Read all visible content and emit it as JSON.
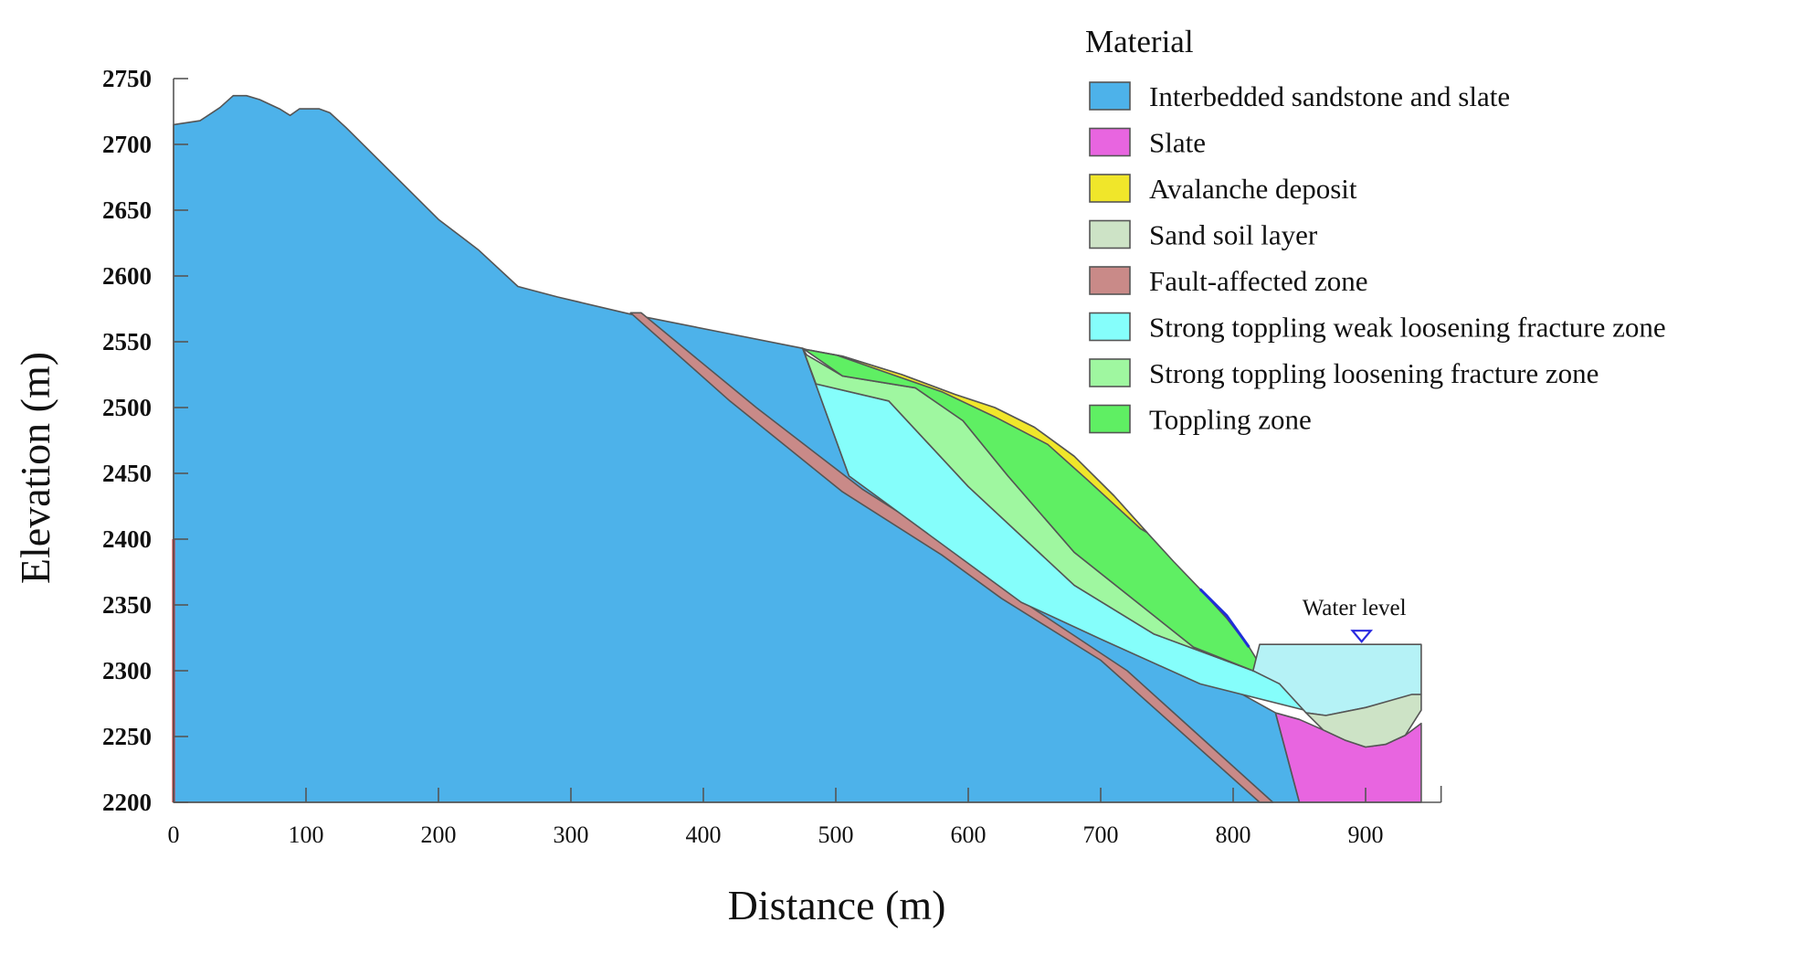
{
  "chart_data": {
    "type": "cross-section",
    "xlabel": "Distance (m)",
    "ylabel": "Elevation (m)",
    "xlim": [
      0,
      960
    ],
    "ylim": [
      2200,
      2750
    ],
    "x_ticks": [
      "0",
      "100",
      "200",
      "300",
      "400",
      "500",
      "600",
      "700",
      "800",
      "900"
    ],
    "y_ticks": [
      "2200",
      "2250",
      "2300",
      "2350",
      "2400",
      "2450",
      "2500",
      "2550",
      "2600",
      "2650",
      "2700",
      "2750"
    ],
    "legend_title": "Material",
    "legend_position": "top-right",
    "materials": [
      {
        "id": "sandstone",
        "label": "Interbedded sandstone and slate",
        "color": "#4db2ea"
      },
      {
        "id": "slate",
        "label": "Slate",
        "color": "#e865e0"
      },
      {
        "id": "avalanche",
        "label": "Avalanche deposit",
        "color": "#f0e62a"
      },
      {
        "id": "sand",
        "label": "Sand soil layer",
        "color": "#cde3c6"
      },
      {
        "id": "fault",
        "label": "Fault-affected zone",
        "color": "#c98a88"
      },
      {
        "id": "weak",
        "label": "Strong toppling weak loosening fracture zone",
        "color": "#85fefb"
      },
      {
        "id": "loose",
        "label": "Strong toppling loosening fracture zone",
        "color": "#9ff7a0"
      },
      {
        "id": "toppling",
        "label": "Toppling zone",
        "color": "#5fef63"
      }
    ],
    "water_level_label": "Water level",
    "water_level_elevation": 2320,
    "water_color": "#b5f2f6",
    "regions": {
      "sandstone": [
        [
          0,
          2200
        ],
        [
          0,
          2715
        ],
        [
          20,
          2718
        ],
        [
          35,
          2728
        ],
        [
          45,
          2737
        ],
        [
          55,
          2737
        ],
        [
          65,
          2734
        ],
        [
          80,
          2727
        ],
        [
          88,
          2722
        ],
        [
          95,
          2727
        ],
        [
          110,
          2727
        ],
        [
          118,
          2724
        ],
        [
          130,
          2713
        ],
        [
          150,
          2693
        ],
        [
          175,
          2668
        ],
        [
          200,
          2643
        ],
        [
          230,
          2620
        ],
        [
          260,
          2592
        ],
        [
          290,
          2584
        ],
        [
          345,
          2571
        ],
        [
          420,
          2556
        ],
        [
          475,
          2545
        ],
        [
          510,
          2448
        ],
        [
          832,
          2268
        ],
        [
          850,
          2200
        ]
      ],
      "slate": [
        [
          832,
          2268
        ],
        [
          850,
          2263
        ],
        [
          868,
          2255
        ],
        [
          885,
          2247
        ],
        [
          900,
          2242
        ],
        [
          915,
          2244
        ],
        [
          930,
          2251
        ],
        [
          942,
          2260
        ],
        [
          942,
          2200
        ],
        [
          850,
          2200
        ]
      ],
      "fault": [
        [
          345,
          2572
        ],
        [
          353,
          2572
        ],
        [
          440,
          2500
        ],
        [
          520,
          2438
        ],
        [
          600,
          2387
        ],
        [
          645,
          2350
        ],
        [
          720,
          2300
        ],
        [
          830,
          2200
        ],
        [
          820,
          2200
        ],
        [
          700,
          2308
        ],
        [
          625,
          2355
        ],
        [
          580,
          2388
        ],
        [
          505,
          2436
        ],
        [
          420,
          2505
        ]
      ],
      "weak": [
        [
          485,
          2518
        ],
        [
          475,
          2545
        ],
        [
          510,
          2448
        ],
        [
          640,
          2352
        ],
        [
          700,
          2324
        ],
        [
          775,
          2290
        ],
        [
          870,
          2266
        ],
        [
          900,
          2272
        ],
        [
          815,
          2300
        ],
        [
          740,
          2328
        ],
        [
          680,
          2365
        ],
        [
          600,
          2440
        ],
        [
          540,
          2505
        ]
      ],
      "loose": [
        [
          475,
          2545
        ],
        [
          485,
          2518
        ],
        [
          540,
          2505
        ],
        [
          600,
          2440
        ],
        [
          680,
          2365
        ],
        [
          740,
          2328
        ],
        [
          815,
          2300
        ],
        [
          900,
          2272
        ],
        [
          770,
          2318
        ],
        [
          680,
          2390
        ],
        [
          630,
          2448
        ],
        [
          596,
          2490
        ],
        [
          560,
          2515
        ],
        [
          505,
          2524
        ],
        [
          478,
          2540
        ]
      ],
      "toppling": [
        [
          475,
          2545
        ],
        [
          505,
          2524
        ],
        [
          560,
          2515
        ],
        [
          596,
          2490
        ],
        [
          630,
          2448
        ],
        [
          680,
          2390
        ],
        [
          770,
          2318
        ],
        [
          815,
          2300
        ],
        [
          820,
          2305
        ],
        [
          812,
          2318
        ],
        [
          795,
          2340
        ],
        [
          775,
          2362
        ],
        [
          755,
          2383
        ],
        [
          735,
          2405
        ],
        [
          710,
          2433
        ],
        [
          680,
          2463
        ],
        [
          650,
          2485
        ],
        [
          620,
          2500
        ],
        [
          590,
          2510
        ],
        [
          550,
          2525
        ],
        [
          505,
          2539
        ],
        [
          478,
          2544
        ]
      ],
      "avalanche": [
        [
          478,
          2544
        ],
        [
          505,
          2539
        ],
        [
          550,
          2525
        ],
        [
          590,
          2510
        ],
        [
          620,
          2500
        ],
        [
          650,
          2485
        ],
        [
          680,
          2463
        ],
        [
          710,
          2433
        ],
        [
          735,
          2405
        ],
        [
          730,
          2408
        ],
        [
          690,
          2445
        ],
        [
          660,
          2472
        ],
        [
          620,
          2493
        ],
        [
          580,
          2512
        ],
        [
          540,
          2526
        ],
        [
          500,
          2540
        ]
      ],
      "sand": [
        [
          870,
          2266
        ],
        [
          900,
          2272
        ],
        [
          935,
          2282
        ],
        [
          942,
          2282
        ],
        [
          942,
          2270
        ],
        [
          930,
          2251
        ],
        [
          915,
          2244
        ],
        [
          900,
          2242
        ],
        [
          885,
          2247
        ],
        [
          868,
          2255
        ],
        [
          855,
          2268
        ]
      ],
      "water": [
        [
          815,
          2300
        ],
        [
          820,
          2320
        ],
        [
          942,
          2320
        ],
        [
          942,
          2282
        ],
        [
          900,
          2272
        ],
        [
          870,
          2266
        ],
        [
          855,
          2268
        ],
        [
          835,
          2290
        ]
      ]
    }
  }
}
